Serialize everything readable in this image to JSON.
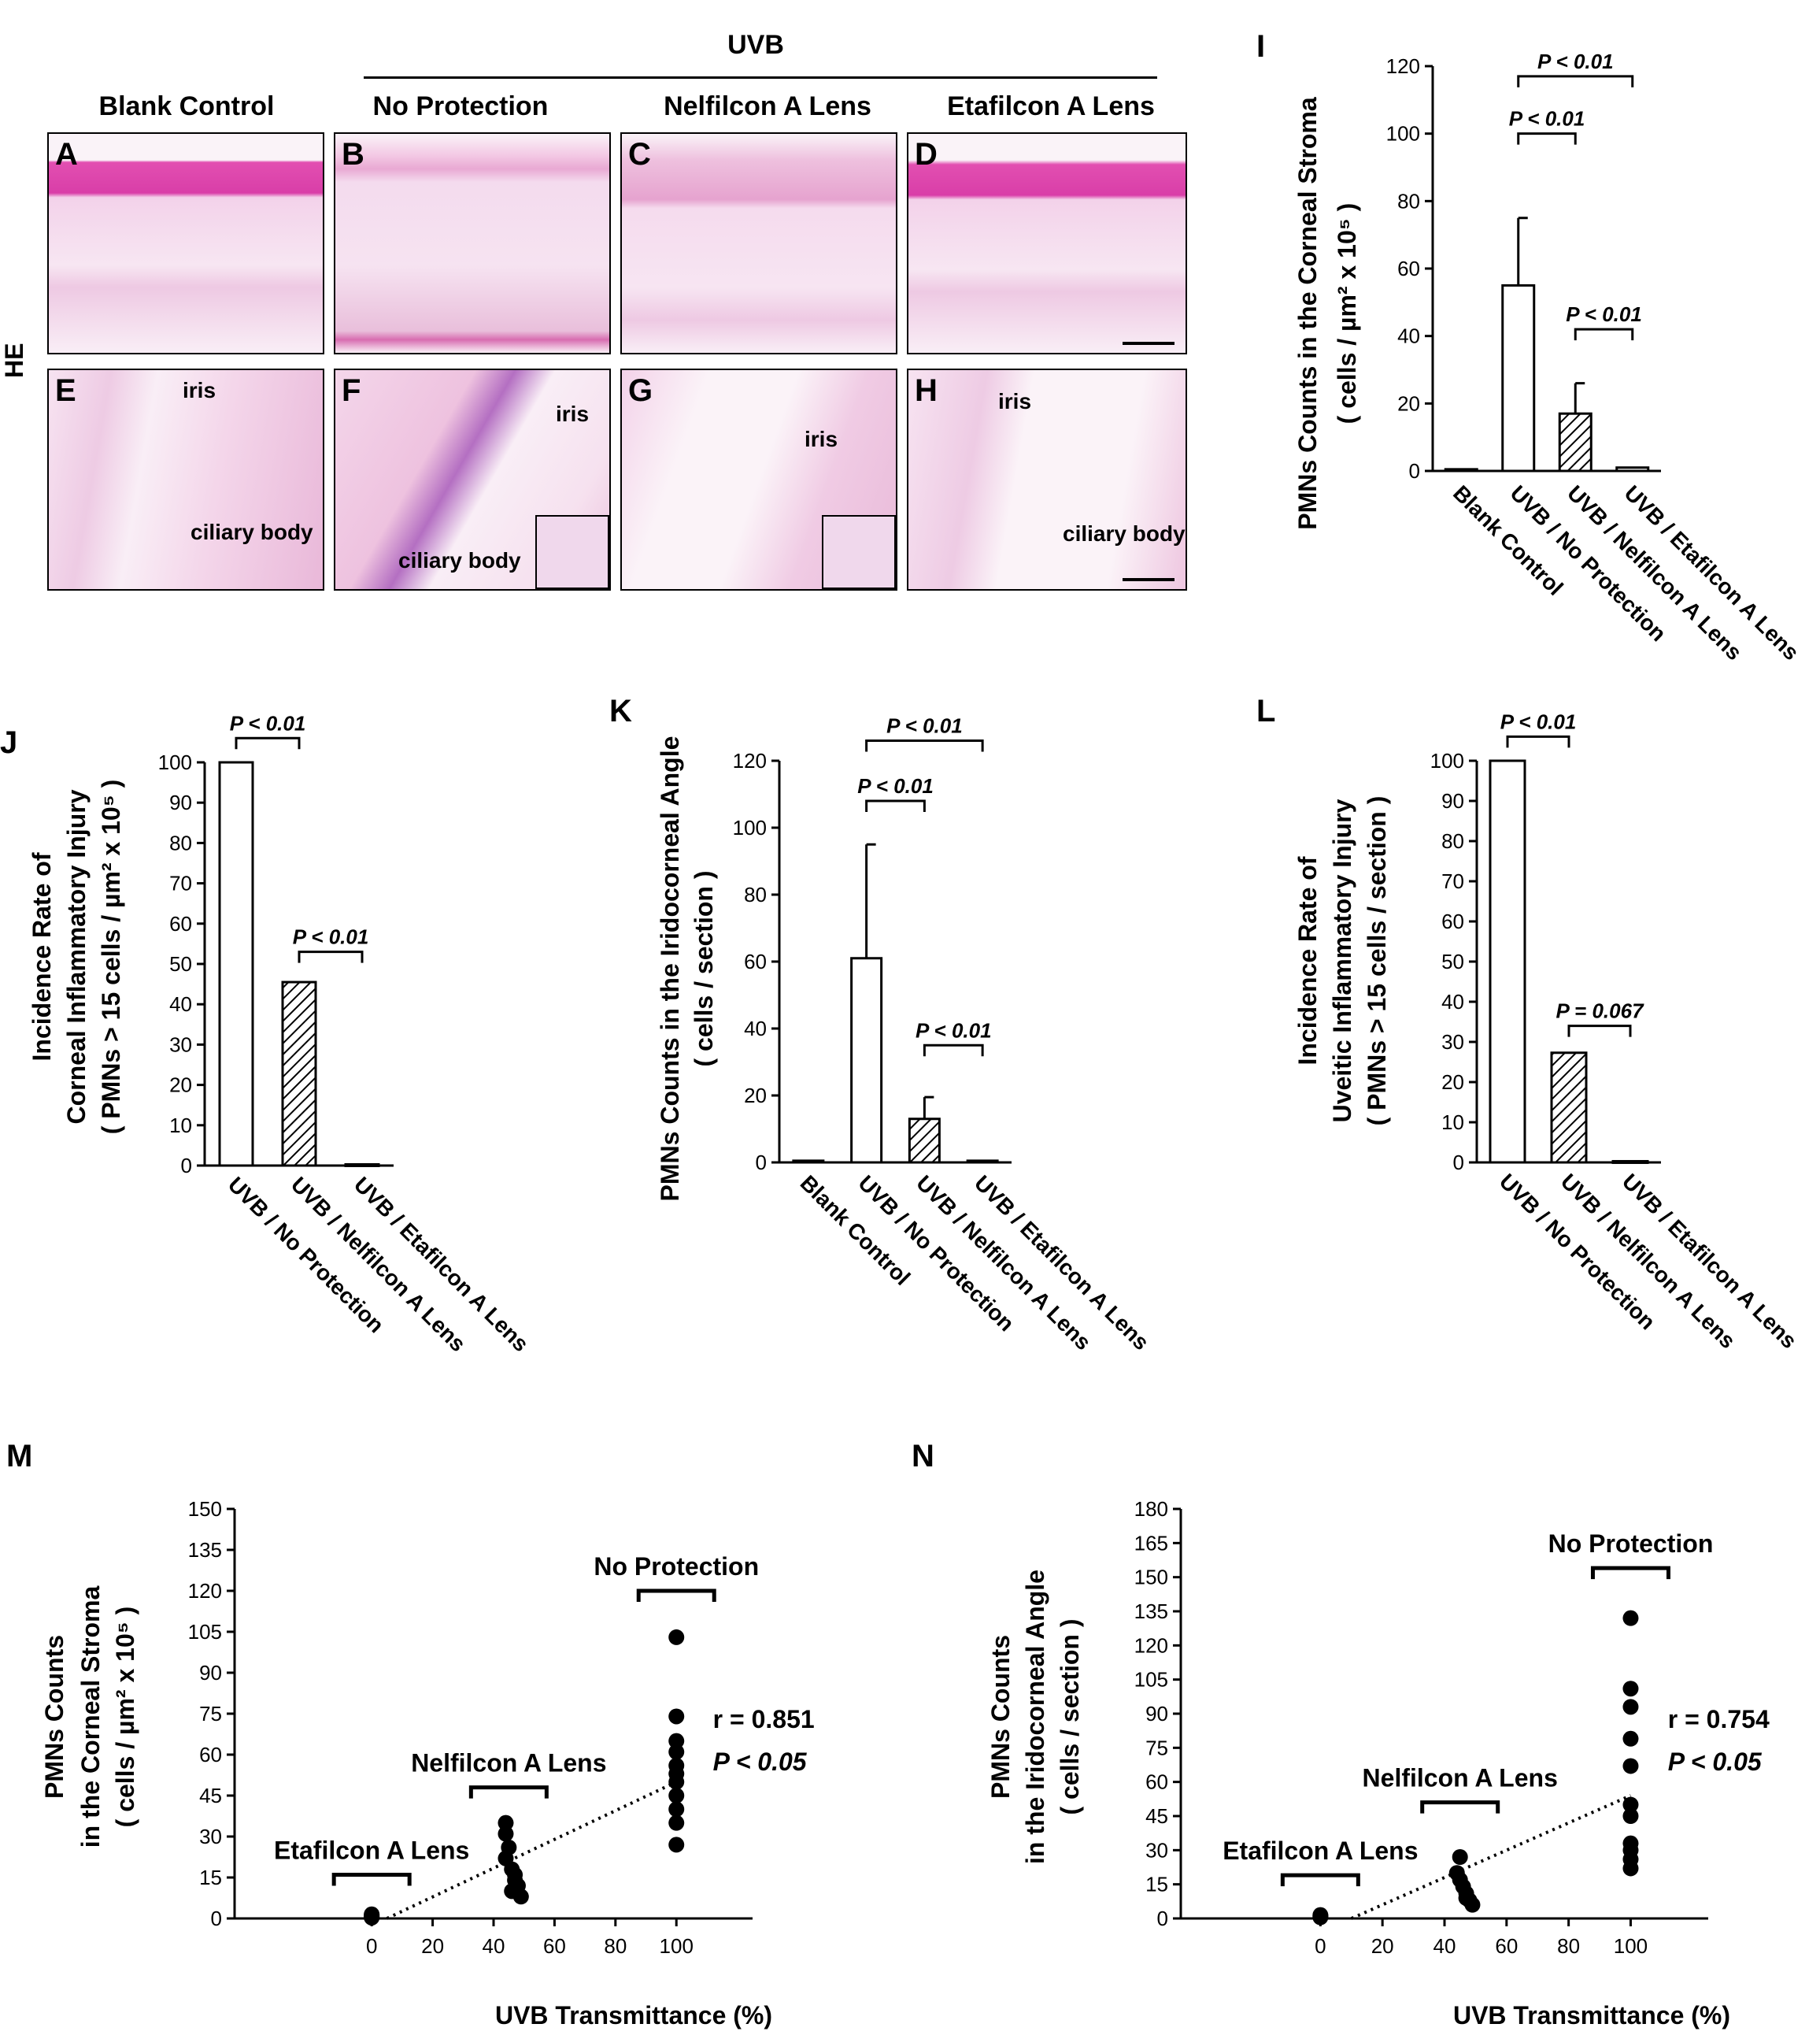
{
  "micrographs": {
    "stain_label": "HE",
    "uvb_header": "UVB",
    "columns": [
      "Blank Control",
      "No Protection",
      "Nelfilcon A Lens",
      "Etafilcon A Lens"
    ],
    "cornea_panels": [
      "A",
      "B",
      "C",
      "D"
    ],
    "uvea_panels": [
      "E",
      "F",
      "G",
      "H"
    ],
    "iris_label": "iris",
    "ciliary_label": "ciliary body"
  },
  "chart_data": [
    {
      "panel": "I",
      "type": "bar",
      "ylabel_line1": "PMNs  Counts in the Corneal Stroma",
      "ylabel_line2": "( cells / µm² x 10⁵  )",
      "categories": [
        "Blank Control",
        "UVB / No Protection",
        "UVB / Nelfilcon A Lens",
        "UVB / Etafilcon A Lens"
      ],
      "values": [
        0.5,
        55,
        17,
        1
      ],
      "errors": [
        0,
        20,
        9,
        0
      ],
      "fills": [
        "white",
        "white",
        "hatch",
        "white"
      ],
      "ylim": [
        0,
        120
      ],
      "yticks": [
        0,
        20,
        40,
        60,
        80,
        100,
        120
      ],
      "brackets": [
        {
          "from": 1,
          "to": 3,
          "y": 117,
          "text": "P < 0.01"
        },
        {
          "from": 1,
          "to": 2,
          "y": 100,
          "text": "P < 0.01"
        },
        {
          "from": 2,
          "to": 3,
          "y": 42,
          "text": "P < 0.01"
        }
      ]
    },
    {
      "panel": "J",
      "type": "bar",
      "ylabel_line1": "Incidence Rate of",
      "ylabel_line2": "Corneal Inflammatory Injury",
      "ylabel_line3": "(  PMNs > 15 cells / µm² x 10⁵  )",
      "categories": [
        "UVB / No Protection",
        "UVB / Nelfilcon A Lens",
        "UVB / Etafilcon A Lens"
      ],
      "values": [
        100,
        45.5,
        0.3
      ],
      "errors": [
        0,
        0,
        0
      ],
      "fills": [
        "white",
        "hatch",
        "white"
      ],
      "ylim": [
        0,
        100
      ],
      "yticks": [
        0,
        10,
        20,
        30,
        40,
        50,
        60,
        70,
        80,
        90,
        100
      ],
      "brackets": [
        {
          "from": 0,
          "to": 1,
          "y": 106,
          "text": "P < 0.01"
        },
        {
          "from": 1,
          "to": 2,
          "y": 53,
          "text": "P < 0.01"
        }
      ]
    },
    {
      "panel": "K",
      "type": "bar",
      "ylabel_line1": "PMNs  Counts in the Iridocorneal Angle",
      "ylabel_line2": "( cells / section  )",
      "categories": [
        "Blank Control",
        "UVB / No Protection",
        "UVB / Nelfilcon A Lens",
        "UVB / Etafilcon A Lens"
      ],
      "values": [
        0.5,
        61,
        13,
        0.5
      ],
      "errors": [
        0,
        34,
        6.5,
        0
      ],
      "fills": [
        "white",
        "white",
        "hatch",
        "white"
      ],
      "ylim": [
        0,
        120
      ],
      "yticks": [
        0,
        20,
        40,
        60,
        80,
        100,
        120
      ],
      "brackets": [
        {
          "from": 1,
          "to": 3,
          "y": 126,
          "text": "P < 0.01"
        },
        {
          "from": 1,
          "to": 2,
          "y": 108,
          "text": "P < 0.01"
        },
        {
          "from": 2,
          "to": 3,
          "y": 35,
          "text": "P < 0.01"
        }
      ]
    },
    {
      "panel": "L",
      "type": "bar",
      "ylabel_line1": "Incidence Rate of",
      "ylabel_line2": "Uveitic Inflammatory Injury",
      "ylabel_line3": "(  PMNs > 15 cells / section  )",
      "categories": [
        "UVB / No Protection",
        "UVB / Nelfilcon A Lens",
        "UVB / Etafilcon A Lens"
      ],
      "values": [
        100,
        27.3,
        0.3
      ],
      "errors": [
        0,
        0,
        0
      ],
      "fills": [
        "white",
        "hatch",
        "white"
      ],
      "ylim": [
        0,
        100
      ],
      "yticks": [
        0,
        10,
        20,
        30,
        40,
        50,
        60,
        70,
        80,
        90,
        100
      ],
      "brackets": [
        {
          "from": 0,
          "to": 1,
          "y": 106,
          "text": "P < 0.01"
        },
        {
          "from": 1,
          "to": 2,
          "y": 34,
          "text": "P = 0.067"
        }
      ]
    },
    {
      "panel": "M",
      "type": "scatter",
      "ylabel_line1": "PMNs  Counts",
      "ylabel_line2": "in the Corneal Stroma",
      "ylabel_line3": "( cells / µm² x 10⁵  )",
      "xlabel": "UVB Transmittance (%)",
      "ylim": [
        0,
        150
      ],
      "xlim": [
        -45,
        125
      ],
      "yticks": [
        0,
        15,
        30,
        45,
        60,
        75,
        90,
        105,
        120,
        135,
        150
      ],
      "xticks": [
        0,
        20,
        40,
        60,
        80,
        100
      ],
      "points": [
        [
          0,
          0.5
        ],
        [
          0,
          0.8
        ],
        [
          0,
          1.2
        ],
        [
          0,
          1.5
        ],
        [
          0,
          0.3
        ],
        [
          44,
          35
        ],
        [
          44,
          31
        ],
        [
          45,
          26
        ],
        [
          44,
          22
        ],
        [
          46,
          18
        ],
        [
          47,
          14
        ],
        [
          46,
          10
        ],
        [
          48,
          12
        ],
        [
          49,
          8
        ],
        [
          47,
          16
        ],
        [
          100,
          103
        ],
        [
          100,
          74
        ],
        [
          100,
          65
        ],
        [
          100,
          61
        ],
        [
          100,
          56
        ],
        [
          100,
          53
        ],
        [
          100,
          50
        ],
        [
          100,
          45
        ],
        [
          100,
          40
        ],
        [
          100,
          35
        ],
        [
          100,
          27
        ]
      ],
      "trend": [
        [
          5,
          0
        ],
        [
          100,
          50
        ]
      ],
      "r_text": "r = 0.851",
      "p_text": "P < 0.05",
      "groups": [
        {
          "text": "Etafilcon A Lens",
          "x": 0,
          "y": 16
        },
        {
          "text": "Nelfilcon A Lens",
          "x": 45,
          "y": 48
        },
        {
          "text": "No Protection",
          "x": 100,
          "y": 120
        }
      ]
    },
    {
      "panel": "N",
      "type": "scatter",
      "ylabel_line1": "PMNs  Counts",
      "ylabel_line2": "in the Iridocorneal Angle",
      "ylabel_line3": "( cells / section  )",
      "xlabel": "UVB Transmittance (%)",
      "ylim": [
        0,
        180
      ],
      "xlim": [
        -45,
        125
      ],
      "yticks": [
        0,
        15,
        30,
        45,
        60,
        75,
        90,
        105,
        120,
        135,
        150,
        165,
        180
      ],
      "xticks": [
        0,
        20,
        40,
        60,
        80,
        100
      ],
      "points": [
        [
          0,
          0.5
        ],
        [
          0,
          0.8
        ],
        [
          0,
          1.2
        ],
        [
          0,
          1.5
        ],
        [
          45,
          27
        ],
        [
          44,
          20
        ],
        [
          45,
          17
        ],
        [
          46,
          14
        ],
        [
          47,
          11
        ],
        [
          48,
          8
        ],
        [
          49,
          6
        ],
        [
          47,
          9
        ],
        [
          100,
          132
        ],
        [
          100,
          101
        ],
        [
          100,
          93
        ],
        [
          100,
          79
        ],
        [
          100,
          67
        ],
        [
          100,
          50
        ],
        [
          100,
          45
        ],
        [
          100,
          33
        ],
        [
          100,
          30
        ],
        [
          100,
          26
        ],
        [
          100,
          22
        ]
      ],
      "trend": [
        [
          10,
          0
        ],
        [
          100,
          54
        ]
      ],
      "r_text": "r = 0.754",
      "p_text": "P < 0.05",
      "groups": [
        {
          "text": "Etafilcon A Lens",
          "x": 0,
          "y": 19
        },
        {
          "text": "Nelfilcon A Lens",
          "x": 45,
          "y": 51
        },
        {
          "text": "No Protection",
          "x": 100,
          "y": 154
        }
      ]
    }
  ]
}
